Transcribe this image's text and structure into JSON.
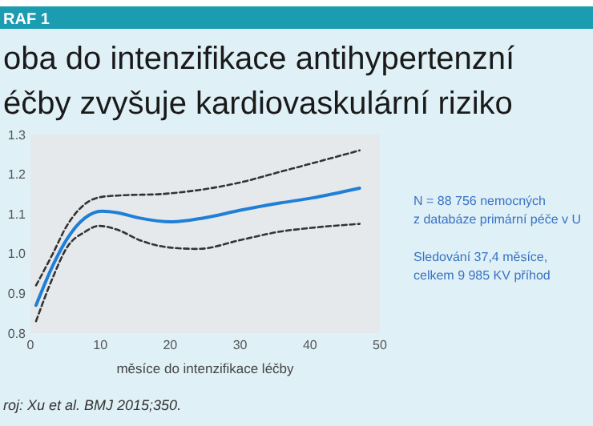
{
  "chart_data": {
    "type": "line",
    "title": "oba do intenzifikace antihypertenzní\néčby zvyšuje kardiovaskulární riziko",
    "xlabel": "měsíce do intenzifikace léčby",
    "annotations": [
      "RAF 1",
      "N = 88 756 nemocných",
      "z databáze primární péče v U",
      "Sledování 37,4 měsíce,",
      "celkem 9 985 KV příhod",
      "roj: Xu et al. BMJ 2015;350."
    ],
    "xlim": [
      0,
      50
    ],
    "xticks": [
      0,
      10,
      20,
      30,
      40,
      50
    ],
    "ylim": [
      0.8,
      1.3
    ],
    "yticks": [
      {
        "value": 0.8,
        "label": "0.8"
      },
      {
        "value": 0.9,
        "label": "0.9"
      },
      {
        "value": 1.0,
        "label": "1.0"
      },
      {
        "value": 1.1,
        "label": "1.1"
      },
      {
        "value": 1.2,
        "label": "1.2"
      },
      {
        "value": 1.3,
        "label": "1.3"
      }
    ],
    "grid": false,
    "series": [
      {
        "color": "#333333",
        "line_style": "dashed",
        "x": [
          0.8,
          3.2,
          5.2,
          7.8,
          10.2,
          13.2,
          18.6,
          24,
          30.2,
          35.5,
          40.2,
          47.1
        ],
        "values": [
          0.92,
          1.0,
          1.07,
          1.125,
          1.143,
          1.147,
          1.15,
          1.16,
          1.18,
          1.205,
          1.227,
          1.26
        ]
      },
      {
        "color": "#1f7fd6",
        "line_style": "solid",
        "x": [
          0.8,
          3.2,
          5.2,
          7.8,
          10.2,
          12.5,
          15.5,
          20.2,
          24.8,
          30.2,
          35.5,
          40.2,
          47.1
        ],
        "values": [
          0.87,
          0.97,
          1.036,
          1.09,
          1.107,
          1.103,
          1.09,
          1.08,
          1.09,
          1.11,
          1.127,
          1.14,
          1.165
        ]
      },
      {
        "color": "#333333",
        "line_style": "dashed",
        "x": [
          0.8,
          3.2,
          5.2,
          7.8,
          9.8,
          12.5,
          15.5,
          20.2,
          24,
          30.2,
          35.5,
          40.2,
          47.1
        ],
        "values": [
          0.83,
          0.94,
          1.015,
          1.055,
          1.07,
          1.06,
          1.035,
          1.015,
          1.012,
          1.035,
          1.055,
          1.065,
          1.075
        ]
      }
    ]
  }
}
